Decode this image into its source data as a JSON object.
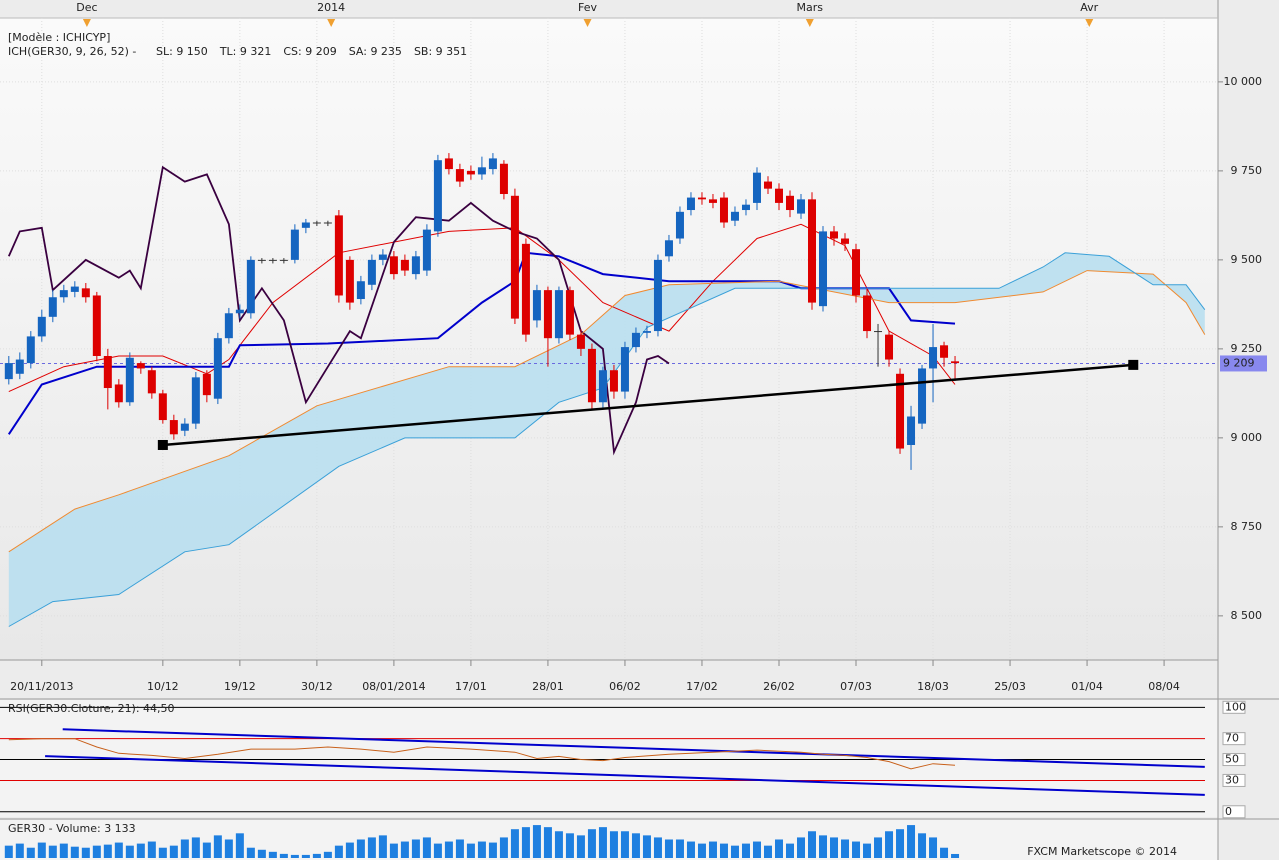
{
  "chart_data": [
    {
      "type": "candlestick",
      "header": "[Modèle : ICHICYP]",
      "indicator": "ICH(GER30, 9, 26, 52) -",
      "up_color": "#1565c0",
      "down_color": "#dd0000",
      "open": [
        9165,
        9180,
        9210,
        9285,
        9340,
        9395,
        9410,
        9420,
        9400,
        9230,
        9150,
        9100,
        9210,
        9190,
        9125,
        9050,
        9020,
        9040,
        9180,
        9110,
        9280,
        9350,
        9350,
        9500,
        9500,
        9500,
        9500,
        9590,
        9605,
        9605,
        9625,
        9500,
        9390,
        9430,
        9500,
        9510,
        9500,
        9460,
        9470,
        9580,
        9785,
        9755,
        9750,
        9740,
        9755,
        9770,
        9680,
        9545,
        9330,
        9415,
        9280,
        9415,
        9290,
        9250,
        9100,
        9190,
        9130,
        9255,
        9295,
        9300,
        9510,
        9560,
        9640,
        9675,
        9670,
        9675,
        9610,
        9640,
        9660,
        9720,
        9700,
        9680,
        9630,
        9670,
        9370,
        9580,
        9560,
        9530,
        9400,
        9300,
        9290,
        9180,
        8980,
        9040,
        9195,
        9260,
        9215
      ],
      "high": [
        9230,
        9240,
        9300,
        9360,
        9415,
        9430,
        9440,
        9435,
        9410,
        9250,
        9165,
        9240,
        9215,
        9200,
        9135,
        9065,
        9055,
        9185,
        9190,
        9295,
        9365,
        9375,
        9510,
        9505,
        9505,
        9505,
        9600,
        9615,
        9610,
        9610,
        9640,
        9510,
        9455,
        9515,
        9530,
        9525,
        9515,
        9525,
        9600,
        9795,
        9800,
        9770,
        9765,
        9790,
        9800,
        9780,
        9700,
        9560,
        9430,
        9425,
        9425,
        9425,
        9305,
        9265,
        9200,
        9205,
        9270,
        9310,
        9315,
        9515,
        9570,
        9650,
        9690,
        9690,
        9685,
        9690,
        9650,
        9670,
        9760,
        9735,
        9715,
        9695,
        9685,
        9690,
        9595,
        9595,
        9575,
        9545,
        9420,
        9320,
        9300,
        9195,
        9090,
        9205,
        9320,
        9270,
        9230
      ],
      "low": [
        9150,
        9165,
        9195,
        9270,
        9325,
        9380,
        9395,
        9380,
        9215,
        9080,
        9085,
        9090,
        9180,
        9110,
        9040,
        8995,
        9005,
        9025,
        9100,
        9095,
        9265,
        9335,
        9335,
        9490,
        9490,
        9490,
        9490,
        9575,
        9595,
        9595,
        9380,
        9360,
        9375,
        9415,
        9485,
        9445,
        9455,
        9445,
        9455,
        9565,
        9740,
        9705,
        9725,
        9725,
        9740,
        9670,
        9320,
        9270,
        9310,
        9200,
        9265,
        9275,
        9230,
        9080,
        9085,
        9110,
        9110,
        9240,
        9280,
        9285,
        9495,
        9545,
        9625,
        9655,
        9645,
        9590,
        9595,
        9625,
        9640,
        9685,
        9640,
        9620,
        9615,
        9360,
        9355,
        9540,
        9525,
        9380,
        9280,
        9200,
        9200,
        8955,
        8910,
        9025,
        9100,
        9200,
        9160
      ],
      "close": [
        9210,
        9220,
        9285,
        9340,
        9395,
        9415,
        9425,
        9395,
        9230,
        9140,
        9100,
        9225,
        9195,
        9125,
        9050,
        9010,
        9040,
        9170,
        9120,
        9280,
        9350,
        9360,
        9500,
        9500,
        9500,
        9500,
        9585,
        9605,
        9605,
        9605,
        9400,
        9380,
        9440,
        9500,
        9515,
        9460,
        9470,
        9510,
        9585,
        9780,
        9755,
        9720,
        9740,
        9760,
        9785,
        9685,
        9335,
        9290,
        9415,
        9280,
        9415,
        9290,
        9250,
        9100,
        9190,
        9130,
        9255,
        9295,
        9300,
        9500,
        9555,
        9635,
        9675,
        9670,
        9660,
        9605,
        9635,
        9655,
        9745,
        9700,
        9660,
        9640,
        9670,
        9380,
        9580,
        9560,
        9545,
        9400,
        9300,
        9300,
        9220,
        8970,
        9060,
        9195,
        9255,
        9225,
        9210
      ],
      "lines": [
        {
          "name": "SL: 9 150",
          "color": "#e00000",
          "x": [
            0,
            5,
            10,
            14,
            18,
            20,
            24,
            30,
            40,
            46,
            50,
            54,
            60,
            64,
            68,
            72,
            76,
            80,
            84,
            86
          ],
          "values": [
            9130,
            9200,
            9230,
            9230,
            9180,
            9220,
            9380,
            9520,
            9580,
            9590,
            9500,
            9380,
            9300,
            9440,
            9560,
            9600,
            9540,
            9300,
            9230,
            9150
          ]
        },
        {
          "name": "TL: 9 321",
          "color": "#0000cc",
          "x": [
            0,
            3,
            8,
            20,
            21,
            29,
            39,
            43,
            46,
            47,
            50,
            54,
            60,
            64,
            70,
            72,
            80,
            82,
            86
          ],
          "values": [
            9010,
            9150,
            9200,
            9200,
            9260,
            9265,
            9280,
            9380,
            9440,
            9520,
            9510,
            9460,
            9440,
            9440,
            9440,
            9420,
            9420,
            9330,
            9321
          ]
        },
        {
          "name": "CS: 9 209",
          "color": "#3a0040",
          "x": [
            0,
            1,
            3,
            4,
            7,
            10,
            11,
            12,
            14,
            16,
            18,
            20,
            21,
            23,
            25,
            27,
            29,
            31,
            32,
            35,
            37,
            40,
            42,
            44,
            46,
            48,
            50,
            52,
            54,
            55,
            57,
            58,
            59,
            60
          ],
          "values": [
            9510,
            9580,
            9590,
            9415,
            9500,
            9450,
            9470,
            9420,
            9760,
            9720,
            9740,
            9600,
            9330,
            9420,
            9330,
            9100,
            9200,
            9300,
            9280,
            9550,
            9620,
            9610,
            9660,
            9610,
            9580,
            9560,
            9500,
            9300,
            9250,
            8960,
            9100,
            9220,
            9230,
            9209
          ]
        },
        {
          "name": "SA: 9 235",
          "color": "#f08a30",
          "x": [
            0,
            6,
            10,
            20,
            28,
            40,
            46,
            52,
            56,
            60,
            70,
            80,
            86,
            94,
            98,
            104,
            107,
            108.7
          ],
          "values": [
            8680,
            8800,
            8840,
            8950,
            9090,
            9200,
            9200,
            9290,
            9400,
            9430,
            9440,
            9380,
            9380,
            9410,
            9470,
            9460,
            9380,
            9290
          ]
        },
        {
          "name": "SB: 9 351",
          "color": "#3aa0d8",
          "x": [
            0,
            4,
            10,
            16,
            20,
            30,
            36,
            46,
            50,
            54,
            58,
            66,
            80,
            90,
            94,
            96,
            100,
            104,
            107,
            108.7
          ],
          "values": [
            8470,
            8540,
            8560,
            8680,
            8700,
            8920,
            9000,
            9000,
            9100,
            9140,
            9310,
            9420,
            9420,
            9420,
            9480,
            9520,
            9510,
            9430,
            9430,
            9360
          ]
        }
      ],
      "cloud_color": "#b9dff0",
      "trendline": {
        "x": [
          14,
          102.2
        ],
        "values": [
          8980,
          9205
        ],
        "color": "#000000"
      },
      "last_price": {
        "value": 9209,
        "label": "9 209"
      },
      "xlim": [
        -0.8,
        109.9
      ],
      "ylim": [
        8376,
        10230
      ],
      "yticks": [
        {
          "value": 8500,
          "label": "8 500"
        },
        {
          "value": 8750,
          "label": "8 750"
        },
        {
          "value": 9000,
          "label": "9 000"
        },
        {
          "value": 9250,
          "label": "9 250"
        },
        {
          "value": 9500,
          "label": "9 500"
        },
        {
          "value": 9750,
          "label": "9 750"
        },
        {
          "value": 10000,
          "label": "10 000"
        }
      ],
      "xticks": [
        {
          "value": 2,
          "label": "20/11/2013"
        },
        {
          "value": 13,
          "label": "10/12"
        },
        {
          "value": 20,
          "label": "19/12"
        },
        {
          "value": 27,
          "label": "30/12"
        },
        {
          "value": 34,
          "label": "08/01/2014"
        },
        {
          "value": 41,
          "label": "17/01"
        },
        {
          "value": 48,
          "label": "28/01"
        },
        {
          "value": 55,
          "label": "06/02"
        },
        {
          "value": 62,
          "label": "17/02"
        },
        {
          "value": 69,
          "label": "26/02"
        },
        {
          "value": 76,
          "label": "07/03"
        },
        {
          "value": 83,
          "label": "18/03"
        },
        {
          "value": 90,
          "label": "25/03"
        },
        {
          "value": 97,
          "label": "01/04"
        },
        {
          "value": 104,
          "label": "08/04"
        }
      ],
      "top_ticks": [
        {
          "value": 7.1,
          "label": "Dec"
        },
        {
          "value": 29.3,
          "label": "2014"
        },
        {
          "value": 52.6,
          "label": "Fev"
        },
        {
          "value": 72.8,
          "label": "Mars"
        },
        {
          "value": 98.2,
          "label": "Avr"
        }
      ]
    },
    {
      "type": "rsi",
      "title": "RSI(GER30.Cloture, 21): 44,50",
      "color": "#c8601a",
      "x": [
        0,
        3,
        6,
        8,
        10,
        13,
        16,
        19,
        22,
        26,
        29,
        32,
        35,
        38,
        42,
        46,
        48,
        50,
        52,
        54,
        56,
        60,
        64,
        68,
        72,
        74,
        76,
        78,
        80,
        82,
        84,
        86
      ],
      "values": [
        69,
        70,
        70,
        62,
        56,
        54,
        51,
        55,
        60,
        60,
        62,
        60,
        57,
        62,
        60,
        57,
        51,
        53,
        50,
        49,
        52,
        55,
        57,
        59,
        57,
        55,
        54,
        52,
        48,
        41,
        46,
        44.5
      ],
      "ylim": [
        -5,
        107
      ],
      "yticks": [
        100,
        70,
        50,
        30,
        0
      ],
      "level_colors": [
        "#000000",
        "#e00000",
        "#000000",
        "#e00000",
        "#000000"
      ],
      "trendlines": [
        {
          "color": "#0000cc",
          "x": [
            4.9,
            108.7
          ],
          "values": [
            79,
            43
          ]
        },
        {
          "color": "#0000cc",
          "x": [
            3.3,
            108.7
          ],
          "values": [
            53.3,
            16.2
          ]
        }
      ]
    },
    {
      "type": "volume",
      "title": "GER30 - Volume: 3 133",
      "color": "#1e7fe0",
      "values": [
        9600,
        11200,
        8000,
        12000,
        9600,
        11200,
        8800,
        8000,
        9600,
        10400,
        12000,
        9600,
        11200,
        12800,
        8000,
        9600,
        14400,
        16000,
        12000,
        17600,
        14400,
        19200,
        8000,
        6400,
        4800,
        3200,
        2400,
        2400,
        3200,
        4800,
        9600,
        12000,
        14400,
        16000,
        17600,
        11200,
        12800,
        14400,
        16000,
        11200,
        12800,
        14400,
        11200,
        12800,
        12000,
        16000,
        22400,
        24000,
        25600,
        24000,
        20800,
        19200,
        17600,
        22400,
        24000,
        20800,
        20800,
        19200,
        17600,
        16000,
        14400,
        14400,
        12800,
        11200,
        12800,
        11200,
        9600,
        11200,
        12800,
        9600,
        14400,
        11200,
        16000,
        20800,
        17600,
        16000,
        14400,
        12800,
        11200,
        16000,
        20800,
        22400,
        25600,
        19200,
        16000,
        8000,
        3133
      ],
      "ylim": [
        0,
        28000
      ]
    }
  ],
  "footer": "FXCM Marketscope © 2014"
}
